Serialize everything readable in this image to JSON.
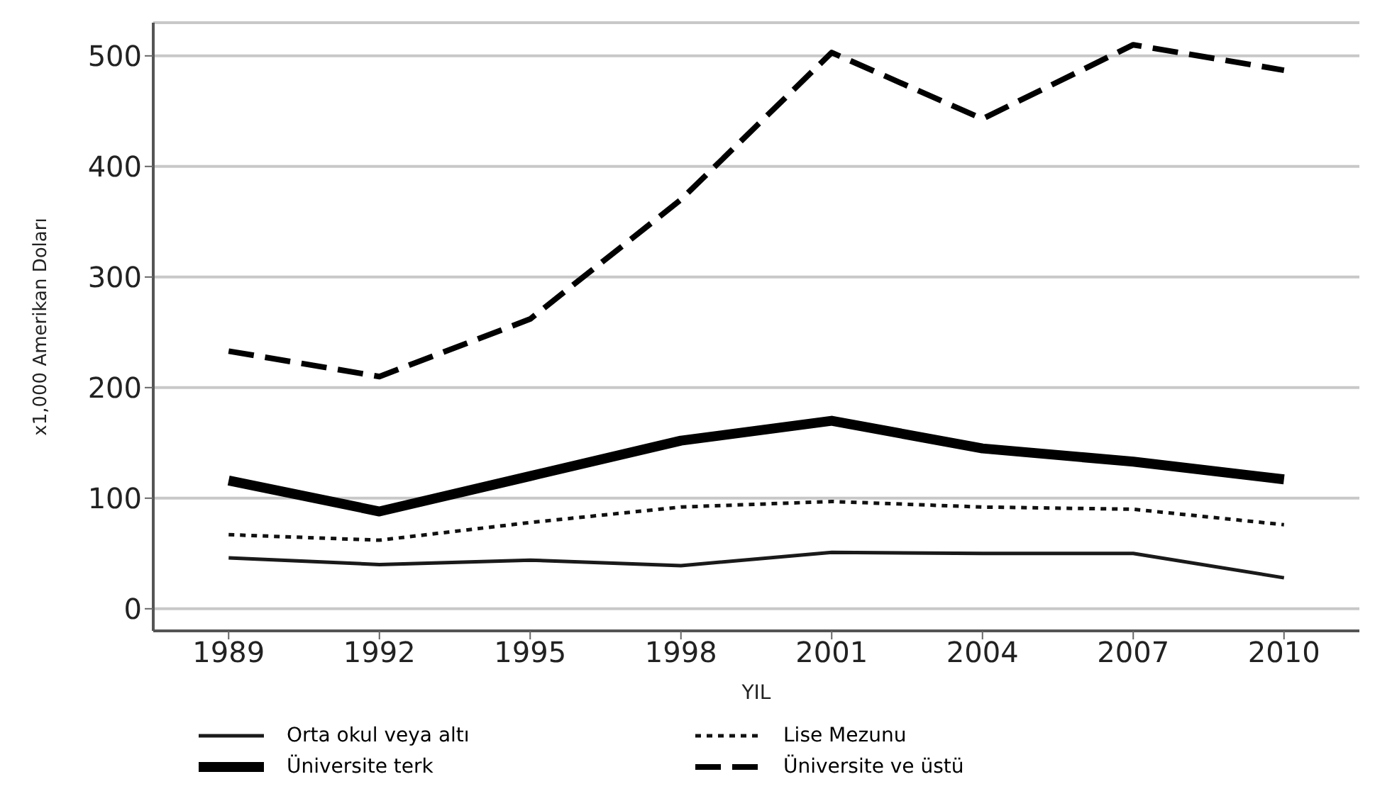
{
  "chart_data": {
    "type": "line",
    "xlabel": "YIL",
    "ylabel": "x1,000 Amerikan Doları",
    "x": [
      1989,
      1992,
      1995,
      1998,
      2001,
      2004,
      2007,
      2010
    ],
    "xlim": [
      1987.5,
      2011.5
    ],
    "xticks": [
      1989,
      1992,
      1995,
      1998,
      2001,
      2004,
      2007,
      2010
    ],
    "ylim": [
      -20,
      530
    ],
    "yticks": [
      0,
      100,
      200,
      300,
      400,
      500
    ],
    "grid": "y",
    "legend": "bottom",
    "marker": "none",
    "series": [
      {
        "name": "Orta okul veya altı",
        "color": "#1a1a1a",
        "line_style": "solid",
        "values": [
          46,
          40,
          44,
          39,
          51,
          50,
          50,
          28
        ]
      },
      {
        "name": "Üniversite terk",
        "color": "#000000",
        "line_style": "solid",
        "values": [
          116,
          88,
          120,
          152,
          170,
          145,
          133,
          117
        ]
      },
      {
        "name": "Lise Mezunu",
        "color": "#111111",
        "line_style": "dotted",
        "values": [
          67,
          62,
          78,
          92,
          97,
          92,
          90,
          76
        ]
      },
      {
        "name": "Üniversite ve üstü",
        "color": "#000000",
        "line_style": "dashed",
        "values": [
          233,
          210,
          262,
          370,
          503,
          443,
          510,
          487
        ]
      }
    ]
  }
}
